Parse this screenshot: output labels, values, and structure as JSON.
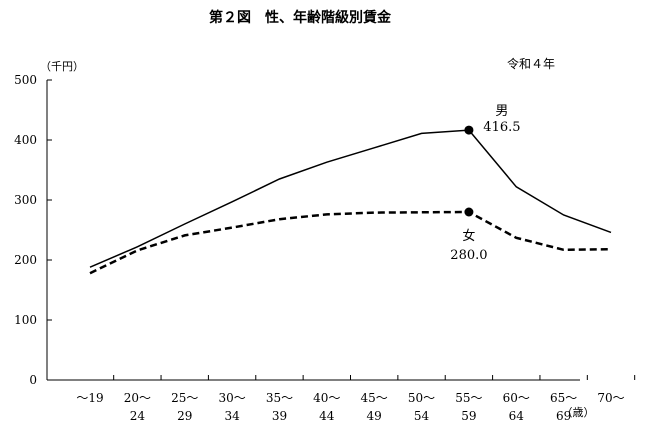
{
  "chart_data": {
    "type": "line",
    "title": "第２図　性、年齢階級別賃金",
    "subtitle": "令和４年",
    "ylabel": "（千円）",
    "xlabel": "（歳）",
    "ylim": [
      0,
      500
    ],
    "yticks": [
      0,
      100,
      200,
      300,
      400,
      500
    ],
    "grid": false,
    "categories": [
      [
        "～19",
        ""
      ],
      [
        "20～",
        "24"
      ],
      [
        "25～",
        "29"
      ],
      [
        "30～",
        "34"
      ],
      [
        "35～",
        "39"
      ],
      [
        "40～",
        "44"
      ],
      [
        "45～",
        "49"
      ],
      [
        "50～",
        "54"
      ],
      [
        "55～",
        "59"
      ],
      [
        "60～",
        "64"
      ],
      [
        "65～",
        "69"
      ],
      [
        "70～",
        ""
      ]
    ],
    "series": [
      {
        "name": "男",
        "style": "solid",
        "color": "#000000",
        "values": [
          188,
          222,
          260,
          297,
          335,
          363,
          387,
          411,
          416.5,
          322,
          275,
          246
        ],
        "highlight_index": 8,
        "highlight_label": "416.5"
      },
      {
        "name": "女",
        "style": "dashed",
        "color": "#000000",
        "values": [
          178,
          216,
          241,
          254,
          268,
          276,
          279,
          279.5,
          280.0,
          237,
          217,
          218
        ],
        "highlight_index": 8,
        "highlight_label": "280.0"
      }
    ]
  }
}
